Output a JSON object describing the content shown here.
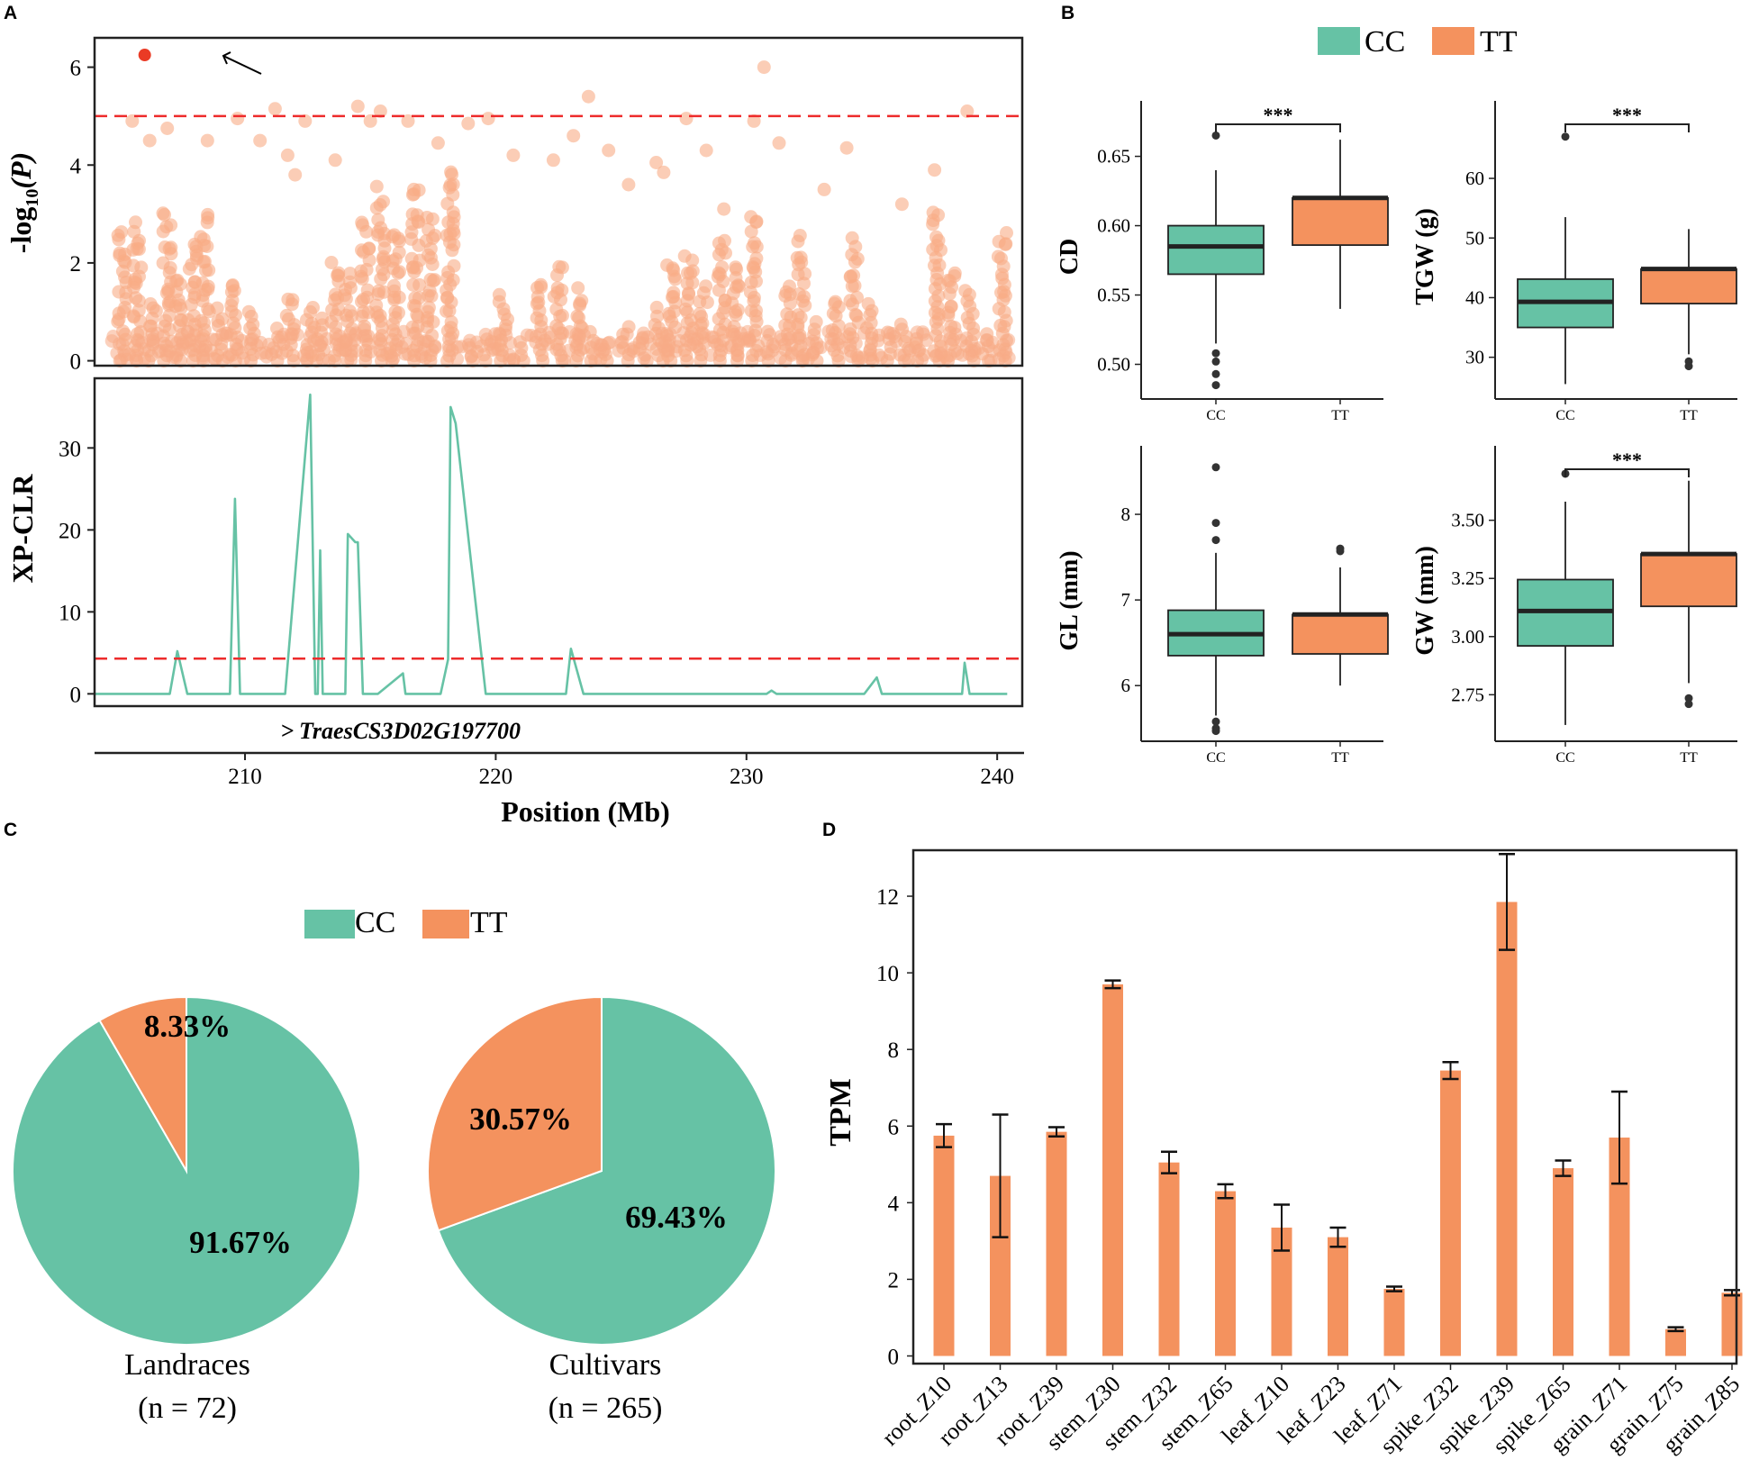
{
  "colors": {
    "cc": "#66c2a5",
    "tt": "#f4925e",
    "tt_point": "#f8ab86",
    "highlight": "#ea3b25",
    "threshold": "#ee2b2b",
    "gene_marker": "#e8281f"
  },
  "panels": {
    "a": "A",
    "b": "B",
    "c": "C",
    "d": "D"
  },
  "chart_data": [
    {
      "id": "A-top",
      "type": "scatter",
      "ylabel": "-log10(P)",
      "ylabel_main": "-log",
      "ylabel_sub": "10",
      "ylabel_arg": "(P)",
      "xlim": [
        204,
        241
      ],
      "ylim": [
        -0.1,
        6.6
      ],
      "yticks": [
        "0",
        "2",
        "4",
        "6"
      ],
      "yticks_values": [
        0,
        2,
        4,
        6
      ],
      "threshold": 5,
      "highlight_point": {
        "x": 206.0,
        "y": 6.25
      },
      "annotation": "arrow pointing to top-associated SNP",
      "columns": [
        {
          "x": 205.1,
          "top": 2.9
        },
        {
          "x": 205.7,
          "top": 3.0
        },
        {
          "x": 206.3,
          "top": 1.3
        },
        {
          "x": 206.9,
          "top": 3.2
        },
        {
          "x": 207.4,
          "top": 1.9
        },
        {
          "x": 207.9,
          "top": 2.6
        },
        {
          "x": 208.4,
          "top": 3.1
        },
        {
          "x": 209.0,
          "top": 1.1
        },
        {
          "x": 209.6,
          "top": 1.8
        },
        {
          "x": 210.3,
          "top": 1.1
        },
        {
          "x": 211.2,
          "top": 0.7
        },
        {
          "x": 211.8,
          "top": 1.4
        },
        {
          "x": 212.6,
          "top": 1.2
        },
        {
          "x": 213.0,
          "top": 0.9
        },
        {
          "x": 213.6,
          "top": 2.1
        },
        {
          "x": 214.1,
          "top": 1.9
        },
        {
          "x": 214.8,
          "top": 3.0
        },
        {
          "x": 215.4,
          "top": 3.6
        },
        {
          "x": 216.0,
          "top": 2.9
        },
        {
          "x": 216.8,
          "top": 3.8
        },
        {
          "x": 217.4,
          "top": 3.1
        },
        {
          "x": 218.2,
          "top": 4.2
        },
        {
          "x": 219.1,
          "top": 0.3
        },
        {
          "x": 219.7,
          "top": 0.5
        },
        {
          "x": 220.3,
          "top": 1.4
        },
        {
          "x": 221.0,
          "top": 0.4
        },
        {
          "x": 221.8,
          "top": 1.8
        },
        {
          "x": 222.5,
          "top": 2.1
        },
        {
          "x": 223.3,
          "top": 1.5
        },
        {
          "x": 223.9,
          "top": 0.6
        },
        {
          "x": 224.5,
          "top": 0.4
        },
        {
          "x": 225.2,
          "top": 0.7
        },
        {
          "x": 225.9,
          "top": 0.5
        },
        {
          "x": 226.5,
          "top": 1.1
        },
        {
          "x": 227.0,
          "top": 2.2
        },
        {
          "x": 227.7,
          "top": 2.3
        },
        {
          "x": 228.3,
          "top": 1.6
        },
        {
          "x": 229.0,
          "top": 2.7
        },
        {
          "x": 229.6,
          "top": 2.1
        },
        {
          "x": 230.3,
          "top": 3.1
        },
        {
          "x": 231.0,
          "top": 0.6
        },
        {
          "x": 231.7,
          "top": 1.7
        },
        {
          "x": 232.2,
          "top": 2.6
        },
        {
          "x": 232.8,
          "top": 0.8
        },
        {
          "x": 233.6,
          "top": 1.4
        },
        {
          "x": 234.3,
          "top": 2.6
        },
        {
          "x": 234.9,
          "top": 1.2
        },
        {
          "x": 235.6,
          "top": 0.6
        },
        {
          "x": 236.3,
          "top": 0.8
        },
        {
          "x": 236.9,
          "top": 0.5
        },
        {
          "x": 237.6,
          "top": 3.3
        },
        {
          "x": 238.2,
          "top": 2.0
        },
        {
          "x": 238.9,
          "top": 1.5
        },
        {
          "x": 239.5,
          "top": 0.6
        },
        {
          "x": 240.2,
          "top": 2.8
        }
      ],
      "scatter_points": [
        {
          "x": 206.9,
          "y": 4.75
        },
        {
          "x": 205.5,
          "y": 4.9
        },
        {
          "x": 208.5,
          "y": 4.5
        },
        {
          "x": 209.7,
          "y": 4.95
        },
        {
          "x": 211.2,
          "y": 5.15
        },
        {
          "x": 211.7,
          "y": 4.2
        },
        {
          "x": 213.6,
          "y": 4.1
        },
        {
          "x": 214.5,
          "y": 5.2
        },
        {
          "x": 215.0,
          "y": 4.9
        },
        {
          "x": 215.4,
          "y": 5.1
        },
        {
          "x": 217.7,
          "y": 4.45
        },
        {
          "x": 219.7,
          "y": 4.95
        },
        {
          "x": 220.7,
          "y": 4.2
        },
        {
          "x": 222.3,
          "y": 4.1
        },
        {
          "x": 223.1,
          "y": 4.6
        },
        {
          "x": 223.7,
          "y": 5.4
        },
        {
          "x": 224.5,
          "y": 4.3
        },
        {
          "x": 226.4,
          "y": 4.05
        },
        {
          "x": 227.6,
          "y": 4.95
        },
        {
          "x": 228.4,
          "y": 4.3
        },
        {
          "x": 230.3,
          "y": 4.9
        },
        {
          "x": 230.7,
          "y": 6.0
        },
        {
          "x": 231.3,
          "y": 4.45
        },
        {
          "x": 234.0,
          "y": 4.35
        },
        {
          "x": 238.8,
          "y": 5.1
        },
        {
          "x": 206.2,
          "y": 4.5
        },
        {
          "x": 210.6,
          "y": 4.5
        },
        {
          "x": 212.4,
          "y": 4.9
        },
        {
          "x": 216.5,
          "y": 4.9
        },
        {
          "x": 218.9,
          "y": 4.85
        },
        {
          "x": 225.3,
          "y": 3.6
        },
        {
          "x": 229.1,
          "y": 3.1
        },
        {
          "x": 233.1,
          "y": 3.5
        },
        {
          "x": 236.2,
          "y": 3.2
        },
        {
          "x": 237.5,
          "y": 3.9
        },
        {
          "x": 212.0,
          "y": 3.8
        },
        {
          "x": 226.7,
          "y": 3.85
        }
      ]
    },
    {
      "id": "A-bottom",
      "type": "line",
      "xlabel": "Position (Mb)",
      "ylabel": "XP-CLR",
      "xlim": [
        204,
        241
      ],
      "ylim": [
        -1.5,
        38.5
      ],
      "xticks": [
        "210",
        "220",
        "230",
        "240"
      ],
      "xticks_values": [
        210,
        220,
        230,
        240
      ],
      "yticks": [
        "0",
        "10",
        "20",
        "30"
      ],
      "yticks_values": [
        0,
        10,
        20,
        30
      ],
      "threshold": 4.3,
      "gene_label": "TraesCS3D02G197700",
      "gene_marker": ">",
      "x": [
        204.0,
        207.0,
        207.3,
        207.7,
        209.4,
        209.6,
        209.8,
        211.2,
        211.6,
        212.6,
        212.8,
        212.9,
        213.0,
        213.1,
        213.3,
        213.6,
        213.9,
        214.0,
        214.1,
        214.4,
        214.5,
        214.7,
        215.3,
        216.3,
        216.4,
        217.8,
        218.1,
        218.2,
        218.4,
        219.6,
        222.8,
        223.0,
        223.5,
        230.8,
        231.0,
        231.2,
        234.7,
        235.2,
        235.4,
        238.6,
        238.7,
        238.9,
        240.4
      ],
      "values": [
        0,
        0,
        5.2,
        0,
        0,
        23.8,
        0,
        0,
        0,
        36.5,
        0,
        0,
        17.5,
        0,
        0,
        0,
        0,
        0,
        19.5,
        18.5,
        18.5,
        0,
        0,
        2.5,
        0,
        0,
        4.2,
        35,
        33,
        0,
        0,
        5.5,
        0,
        0,
        0.4,
        0,
        0,
        2,
        0,
        0,
        3.8,
        0,
        0
      ]
    },
    {
      "id": "B",
      "type": "box",
      "legend": [
        "CC",
        "TT"
      ],
      "significance_label": "***",
      "subplots": [
        {
          "ylabel": "CD",
          "yticks": [
            "0.50",
            "0.55",
            "0.60",
            "0.65"
          ],
          "yticks_values": [
            0.5,
            0.55,
            0.6,
            0.65
          ],
          "ylim": [
            0.475,
            0.69
          ],
          "significant": true,
          "categories": [
            "CC",
            "TT"
          ],
          "boxes": [
            {
              "group": "CC",
              "q1": 0.565,
              "median": 0.585,
              "q3": 0.6,
              "whisker_low": 0.515,
              "whisker_high": 0.64,
              "outliers": [
                0.665,
                0.508,
                0.502,
                0.493,
                0.485
              ]
            },
            {
              "group": "TT",
              "q1": 0.586,
              "median": 0.62,
              "q3": 0.62,
              "whisker_low": 0.54,
              "whisker_high": 0.662,
              "outliers": []
            }
          ]
        },
        {
          "ylabel": "TGW (g)",
          "yticks": [
            "30",
            "40",
            "50",
            "60"
          ],
          "yticks_values": [
            30,
            40,
            50,
            60
          ],
          "ylim": [
            23,
            73
          ],
          "significant": true,
          "categories": [
            "CC",
            "TT"
          ],
          "boxes": [
            {
              "group": "CC",
              "q1": 35,
              "median": 39.3,
              "q3": 43.1,
              "whisker_low": 25.5,
              "whisker_high": 53.5,
              "outliers": [
                67
              ]
            },
            {
              "group": "TT",
              "q1": 39,
              "median": 44.8,
              "q3": 44.8,
              "whisker_low": 30.5,
              "whisker_high": 51.5,
              "outliers": [
                29.3,
                28.5
              ]
            }
          ]
        },
        {
          "ylabel": "GL (mm)",
          "yticks": [
            "6",
            "7",
            "8"
          ],
          "yticks_values": [
            6,
            7,
            8
          ],
          "ylim": [
            5.35,
            8.8
          ],
          "significant": false,
          "categories": [
            "CC",
            "TT"
          ],
          "boxes": [
            {
              "group": "CC",
              "q1": 6.35,
              "median": 6.6,
              "q3": 6.88,
              "whisker_low": 5.65,
              "whisker_high": 7.55,
              "outliers": [
                8.55,
                7.9,
                7.7,
                5.58,
                5.5,
                5.47
              ]
            },
            {
              "group": "TT",
              "q1": 6.37,
              "median": 6.83,
              "q3": 6.83,
              "whisker_low": 6.0,
              "whisker_high": 7.38,
              "outliers": [
                7.6,
                7.57
              ]
            }
          ]
        },
        {
          "ylabel": "GW (mm)",
          "yticks": [
            "2.75",
            "3.00",
            "3.25",
            "3.50"
          ],
          "yticks_values": [
            2.75,
            3.0,
            3.25,
            3.5
          ],
          "ylim": [
            2.55,
            3.82
          ],
          "significant": true,
          "categories": [
            "CC",
            "TT"
          ],
          "boxes": [
            {
              "group": "CC",
              "q1": 2.96,
              "median": 3.11,
              "q3": 3.245,
              "whisker_low": 2.62,
              "whisker_high": 3.58,
              "outliers": [
                3.7
              ]
            },
            {
              "group": "TT",
              "q1": 3.13,
              "median": 3.355,
              "q3": 3.355,
              "whisker_low": 2.8,
              "whisker_high": 3.67,
              "outliers": [
                2.735,
                2.71
              ]
            }
          ]
        }
      ]
    },
    {
      "id": "C",
      "type": "pie",
      "legend": [
        "CC",
        "TT"
      ],
      "pies": [
        {
          "title": "Landraces",
          "n_label": "(n = 72)",
          "slices": [
            {
              "label": "CC",
              "value": 91.67,
              "text": "91.67%"
            },
            {
              "label": "TT",
              "value": 8.33,
              "text": "8.33%"
            }
          ]
        },
        {
          "title": "Cultivars",
          "n_label": "(n = 265)",
          "slices": [
            {
              "label": "CC",
              "value": 69.43,
              "text": "69.43%"
            },
            {
              "label": "TT",
              "value": 30.57,
              "text": "30.57%"
            }
          ]
        }
      ]
    },
    {
      "id": "D",
      "type": "bar",
      "ylabel": "TPM",
      "ylim": [
        -0.2,
        13.2
      ],
      "yticks": [
        "0",
        "2",
        "4",
        "6",
        "8",
        "10",
        "12"
      ],
      "yticks_values": [
        0,
        2,
        4,
        6,
        8,
        10,
        12
      ],
      "categories": [
        "root_Z10",
        "root_Z13",
        "root_Z39",
        "stem_Z30",
        "stem_Z32",
        "stem_Z65",
        "leaf_Z10",
        "leaf_Z23",
        "leaf_Z71",
        "spike_Z32",
        "spike_Z39",
        "spike_Z65",
        "grain_Z71",
        "grain_Z75",
        "grain_Z85"
      ],
      "values": [
        5.75,
        4.7,
        5.85,
        9.7,
        5.05,
        4.3,
        3.35,
        3.1,
        1.75,
        7.45,
        11.85,
        4.9,
        5.7,
        0.7,
        1.65
      ],
      "errors": [
        0.3,
        1.6,
        0.12,
        0.1,
        0.28,
        0.18,
        0.6,
        0.25,
        0.06,
        0.22,
        1.25,
        0.2,
        1.2,
        0.05,
        0.07
      ]
    }
  ]
}
